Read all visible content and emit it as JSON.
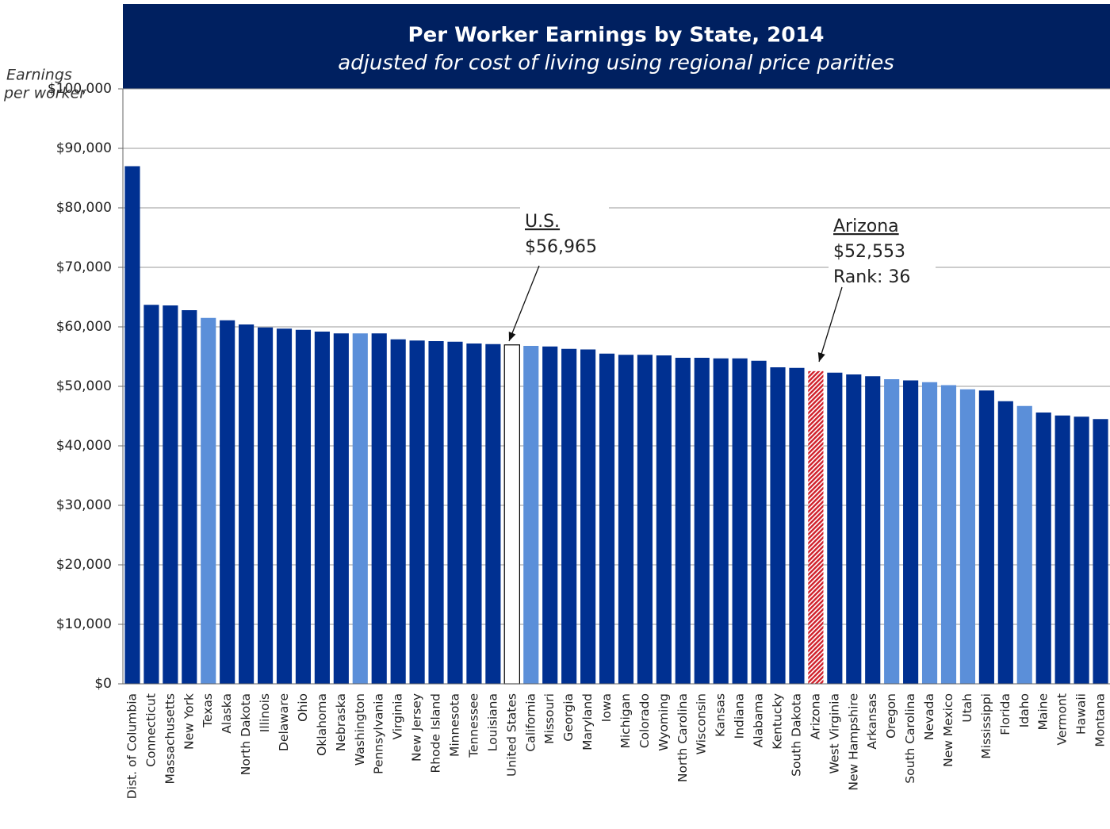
{
  "chart_data": {
    "type": "bar",
    "title": "Per Worker Earnings by State, 2014",
    "subtitle": "adjusted for cost of living using regional price parities",
    "y_label": [
      "Earnings",
      "per worker"
    ],
    "categories": [
      "Dist. of Columbia",
      "Connecticut",
      "Massachusetts",
      "New York",
      "Texas",
      "Alaska",
      "North Dakota",
      "Illinois",
      "Delaware",
      "Ohio",
      "Oklahoma",
      "Nebraska",
      "Washington",
      "Pennsylvania",
      "Virginia",
      "New Jersey",
      "Rhode Island",
      "Minnesota",
      "Tennessee",
      "Louisiana",
      "United States",
      "California",
      "Missouri",
      "Georgia",
      "Maryland",
      "Iowa",
      "Michigan",
      "Colorado",
      "Wyoming",
      "North Carolina",
      "Wisconsin",
      "Kansas",
      "Indiana",
      "Alabama",
      "Kentucky",
      "South Dakota",
      "Arizona",
      "West Virginia",
      "New Hampshire",
      "Arkansas",
      "Oregon",
      "South Carolina",
      "Nevada",
      "New Mexico",
      "Utah",
      "Mississippi",
      "Florida",
      "Idaho",
      "Maine",
      "Vermont",
      "Hawaii",
      "Montana"
    ],
    "values": [
      87000,
      63700,
      63600,
      62800,
      61500,
      61100,
      60400,
      59900,
      59700,
      59500,
      59200,
      58900,
      58900,
      58900,
      57900,
      57700,
      57600,
      57500,
      57200,
      57100,
      56965,
      56800,
      56700,
      56300,
      56200,
      55500,
      55300,
      55300,
      55200,
      54800,
      54800,
      54700,
      54700,
      54300,
      53200,
      53100,
      52553,
      52300,
      52000,
      51700,
      51200,
      51000,
      50700,
      50200,
      49500,
      49300,
      47500,
      46700,
      45600,
      45100,
      44900,
      44500
    ],
    "colors": [
      "#003091",
      "#003091",
      "#003091",
      "#003091",
      "#5b8fd9",
      "#003091",
      "#003091",
      "#003091",
      "#003091",
      "#003091",
      "#003091",
      "#003091",
      "#5b8fd9",
      "#003091",
      "#003091",
      "#003091",
      "#003091",
      "#003091",
      "#003091",
      "#003091",
      "#ffffff",
      "#5b8fd9",
      "#003091",
      "#003091",
      "#003091",
      "#003091",
      "#003091",
      "#003091",
      "#003091",
      "#003091",
      "#003091",
      "#003091",
      "#003091",
      "#003091",
      "#003091",
      "#003091",
      "#d01f2a",
      "#003091",
      "#003091",
      "#003091",
      "#5b8fd9",
      "#003091",
      "#5b8fd9",
      "#5b8fd9",
      "#5b8fd9",
      "#003091",
      "#003091",
      "#5b8fd9",
      "#003091",
      "#003091",
      "#003091",
      "#003091"
    ],
    "hatch_color": "#d01f2a",
    "ylim": [
      0,
      100000
    ],
    "yticks": [
      {
        "value": 0,
        "label": "$0"
      },
      {
        "value": 10000,
        "label": "$10,000"
      },
      {
        "value": 20000,
        "label": "$20,000"
      },
      {
        "value": 30000,
        "label": "$30,000"
      },
      {
        "value": 40000,
        "label": "$40,000"
      },
      {
        "value": 50000,
        "label": "$50,000"
      },
      {
        "value": 60000,
        "label": "$60,000"
      },
      {
        "value": 70000,
        "label": "$70,000"
      },
      {
        "value": 80000,
        "label": "$80,000"
      },
      {
        "value": 90000,
        "label": "$90,000"
      },
      {
        "value": 100000,
        "label": "$100,000"
      }
    ],
    "grid": true,
    "annotations": [
      {
        "lines": [
          "U.S.",
          "$56,965"
        ]
      },
      {
        "lines": [
          "Arizona",
          "$52,553",
          "Rank: 36"
        ]
      }
    ]
  }
}
